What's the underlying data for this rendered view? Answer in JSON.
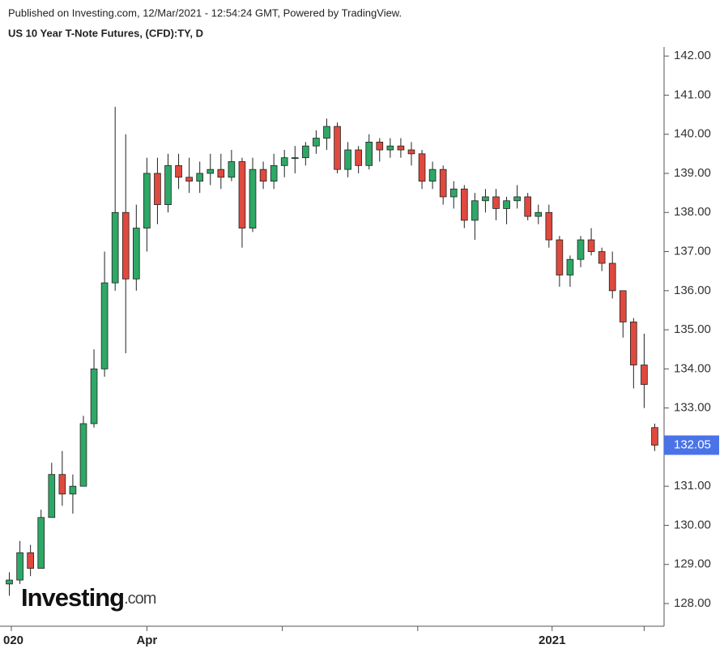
{
  "chart_data": {
    "type": "candlestick",
    "source": "Published on Investing.com, 12/Mar/2021 - 12:54:24 GMT, Powered by TradingView.",
    "title": "US 10 Year T-Note Futures, (CFD):TY, D",
    "logo": "Investing",
    "logo_suffix": ".com",
    "up_color": "#2ea866",
    "down_color": "#e0493e",
    "last_color": "#4a73e8",
    "xlim": [
      0,
      62
    ],
    "ylim": [
      127.42,
      142.19
    ],
    "xticks": [
      {
        "value": 0.69,
        "label": "020"
      },
      {
        "value": 13.5,
        "label": "Apr"
      },
      {
        "value": 26.3,
        "label": null
      },
      {
        "value": 39.1,
        "label": null
      },
      {
        "value": 51.8,
        "label": "2021"
      },
      {
        "value": 60.5,
        "label": null
      }
    ],
    "yticks": [
      {
        "value": 128,
        "label": "128.00"
      },
      {
        "value": 129,
        "label": "129.00"
      },
      {
        "value": 130,
        "label": "130.00"
      },
      {
        "value": 131,
        "label": "131.00"
      },
      {
        "value": 132,
        "label": "132.00"
      },
      {
        "value": 133,
        "label": "133.00"
      },
      {
        "value": 134,
        "label": "134.00"
      },
      {
        "value": 135,
        "label": "135.00"
      },
      {
        "value": 136,
        "label": "136.00"
      },
      {
        "value": 137,
        "label": "137.00"
      },
      {
        "value": 138,
        "label": "138.00"
      },
      {
        "value": 139,
        "label": "139.00"
      },
      {
        "value": 140,
        "label": "140.00"
      },
      {
        "value": 141,
        "label": "141.00"
      },
      {
        "value": 142,
        "label": "142.00"
      }
    ],
    "x": [
      0.5,
      1.5,
      2.5,
      3.5,
      4.5,
      5.5,
      6.5,
      7.5,
      8.5,
      9.5,
      10.5,
      11.5,
      12.5,
      13.5,
      14.5,
      15.5,
      16.5,
      17.5,
      18.5,
      19.5,
      20.5,
      21.5,
      22.5,
      23.5,
      24.5,
      25.5,
      26.5,
      27.5,
      28.5,
      29.5,
      30.5,
      31.5,
      32.5,
      33.5,
      34.5,
      35.5,
      36.5,
      37.5,
      38.5,
      39.5,
      40.5,
      41.5,
      42.5,
      43.5,
      44.5,
      45.5,
      46.5,
      47.5,
      48.5,
      49.5,
      50.5,
      51.5,
      52.5,
      53.5,
      54.5,
      55.5,
      56.5,
      57.5,
      58.5,
      59.5,
      60.5,
      61.5
    ],
    "open": [
      128.5,
      128.6,
      129.3,
      128.9,
      130.2,
      131.3,
      130.8,
      131.0,
      132.6,
      134.0,
      136.2,
      138.0,
      136.3,
      137.6,
      139.0,
      138.2,
      139.2,
      138.9,
      138.8,
      139.0,
      139.1,
      138.9,
      139.3,
      137.6,
      139.1,
      138.8,
      139.2,
      139.4,
      139.4,
      139.7,
      139.9,
      140.2,
      139.1,
      139.6,
      139.2,
      139.8,
      139.6,
      139.7,
      139.6,
      139.5,
      138.8,
      139.1,
      138.4,
      138.6,
      137.8,
      138.3,
      138.4,
      138.1,
      138.3,
      138.4,
      137.9,
      138.0,
      137.3,
      136.4,
      136.8,
      137.3,
      137.0,
      136.7,
      136.0,
      135.2,
      134.1,
      132.5
    ],
    "high": [
      128.8,
      129.6,
      129.5,
      130.4,
      131.6,
      131.9,
      131.3,
      132.8,
      134.5,
      137.0,
      140.7,
      140.0,
      138.2,
      139.4,
      139.4,
      139.5,
      139.5,
      139.4,
      139.3,
      139.5,
      139.5,
      139.6,
      139.4,
      139.4,
      139.3,
      139.5,
      139.6,
      139.7,
      139.8,
      140.1,
      140.4,
      140.3,
      139.8,
      139.7,
      140.0,
      139.9,
      139.9,
      139.9,
      139.8,
      139.6,
      139.3,
      139.2,
      138.8,
      138.7,
      138.5,
      138.6,
      138.6,
      138.4,
      138.7,
      138.5,
      138.2,
      138.2,
      137.4,
      136.9,
      137.4,
      137.6,
      137.1,
      137.0,
      136.0,
      135.3,
      134.9,
      132.6
    ],
    "low": [
      128.2,
      128.5,
      128.7,
      128.9,
      130.2,
      130.5,
      130.3,
      131.0,
      132.5,
      133.8,
      136.0,
      134.4,
      136.0,
      137.0,
      137.7,
      138.0,
      138.6,
      138.5,
      138.5,
      138.7,
      138.6,
      138.8,
      137.1,
      137.5,
      138.6,
      138.6,
      138.9,
      139.0,
      139.2,
      139.5,
      139.6,
      139.0,
      138.9,
      139.0,
      139.1,
      139.3,
      139.4,
      139.4,
      139.2,
      138.6,
      138.6,
      138.2,
      138.1,
      137.6,
      137.3,
      138.0,
      137.8,
      137.7,
      138.1,
      137.8,
      137.7,
      137.1,
      136.1,
      136.1,
      136.6,
      136.9,
      136.5,
      135.8,
      134.8,
      133.5,
      133.0,
      131.9
    ],
    "close": [
      128.6,
      129.3,
      128.9,
      130.2,
      131.3,
      130.8,
      131.0,
      132.6,
      134.0,
      136.2,
      138.0,
      136.3,
      137.6,
      139.0,
      138.2,
      139.2,
      138.9,
      138.8,
      139.0,
      139.1,
      138.9,
      139.3,
      137.6,
      139.1,
      138.8,
      139.2,
      139.4,
      139.4,
      139.7,
      139.9,
      140.2,
      139.1,
      139.6,
      139.2,
      139.8,
      139.6,
      139.7,
      139.6,
      139.5,
      138.8,
      139.1,
      138.4,
      138.6,
      137.8,
      138.3,
      138.4,
      138.1,
      138.3,
      138.4,
      137.9,
      138.0,
      137.3,
      136.4,
      136.8,
      137.3,
      137.0,
      136.7,
      136.0,
      135.2,
      134.1,
      133.6,
      132.05
    ]
  }
}
